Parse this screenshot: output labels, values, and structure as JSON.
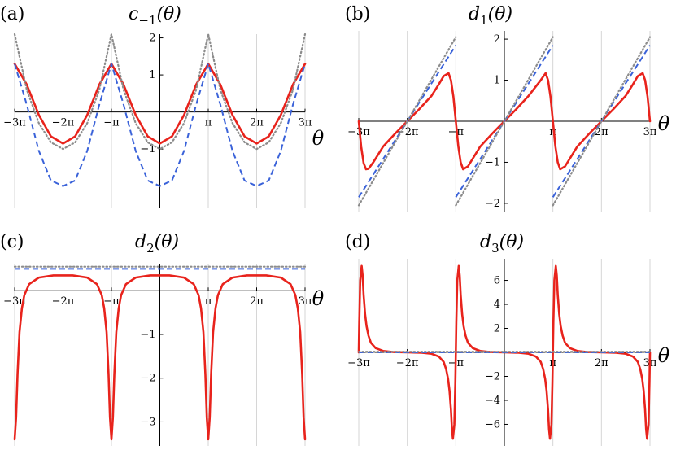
{
  "figure": {
    "axis_symbol": "θ"
  },
  "colors": {
    "main": "#e8231c",
    "dashed": "#3a62d9",
    "dotted": "#8c8c8c",
    "grid": "#d6d6d6",
    "axis": "#000000"
  },
  "chart_data": [
    {
      "type": "line",
      "panel_label": "(a)",
      "title": "c−1(θ)",
      "title_base": "c",
      "title_sub": "−1",
      "title_arg": "(θ)",
      "x_label": "θ",
      "x_range_pi": [
        -3,
        3
      ],
      "ylim": [
        -2.6,
        2.1
      ],
      "x_ticks": [
        {
          "value_pi": -3,
          "label": "−3π"
        },
        {
          "value_pi": -2,
          "label": "−2π"
        },
        {
          "value_pi": -1,
          "label": "−π"
        },
        {
          "value_pi": 1,
          "label": "π"
        },
        {
          "value_pi": 2,
          "label": "2π"
        },
        {
          "value_pi": 3,
          "label": "3π"
        }
      ],
      "y_ticks": [
        {
          "value": -1,
          "label": "−1"
        },
        {
          "value": 1,
          "label": "1"
        },
        {
          "value": 2,
          "label": "2"
        }
      ],
      "grid_x": true,
      "series": [
        {
          "style": "solid",
          "color": "#e8231c",
          "x_pi": [
            -3,
            -2.75,
            -2.5,
            -2.25,
            -2,
            -1.75,
            -1.5,
            -1.25,
            -1,
            -0.75,
            -0.5,
            -0.25,
            0,
            0.25,
            0.5,
            0.75,
            1,
            1.25,
            1.5,
            1.75,
            2,
            2.25,
            2.5,
            2.75,
            3
          ],
          "y": [
            1.3,
            0.74,
            -0.08,
            -0.66,
            -0.85,
            -0.66,
            -0.08,
            0.74,
            1.3,
            0.74,
            -0.08,
            -0.66,
            -0.85,
            -0.66,
            -0.08,
            0.74,
            1.3,
            0.74,
            -0.08,
            -0.66,
            -0.85,
            -0.66,
            -0.08,
            0.74,
            1.3
          ]
        },
        {
          "style": "dashed",
          "color": "#3a62d9",
          "x_pi": [
            -3,
            -2.75,
            -2.5,
            -2.25,
            -2,
            -1.75,
            -1.5,
            -1.25,
            -1,
            -0.75,
            -0.5,
            -0.25,
            0,
            0.25,
            0.5,
            0.75,
            1,
            1.25,
            1.5,
            1.75,
            2,
            2.25,
            2.5,
            2.75,
            3
          ],
          "y": [
            1.3,
            0.2,
            -1.05,
            -1.85,
            -2.0,
            -1.85,
            -1.05,
            0.2,
            1.3,
            0.2,
            -1.05,
            -1.85,
            -2.0,
            -1.85,
            -1.05,
            0.2,
            1.3,
            0.2,
            -1.05,
            -1.85,
            -2.0,
            -1.85,
            -1.05,
            0.2,
            1.3
          ]
        },
        {
          "style": "dotted",
          "color": "#8c8c8c",
          "x_pi": [
            -3,
            -2.75,
            -2.5,
            -2.25,
            -2,
            -1.75,
            -1.5,
            -1.25,
            -1,
            -0.75,
            -0.5,
            -0.25,
            0,
            0.25,
            0.5,
            0.75,
            1,
            1.25,
            1.5,
            1.75,
            2,
            2.25,
            2.5,
            2.75,
            3
          ],
          "y": [
            2.1,
            0.6,
            -0.3,
            -0.82,
            -1.0,
            -0.82,
            -0.3,
            0.6,
            2.1,
            0.6,
            -0.3,
            -0.82,
            -1.0,
            -0.82,
            -0.3,
            0.6,
            2.1,
            0.6,
            -0.3,
            -0.82,
            -1.0,
            -0.82,
            -0.3,
            0.6,
            2.1
          ]
        }
      ]
    },
    {
      "type": "line",
      "panel_label": "(b)",
      "title": "d1(θ)",
      "title_base": "d",
      "title_sub": "1",
      "title_arg": "(θ)",
      "x_label": "θ",
      "x_range_pi": [
        -3,
        3
      ],
      "ylim": [
        -2.2,
        2.2
      ],
      "x_ticks": [
        {
          "value_pi": -3,
          "label": "−3π"
        },
        {
          "value_pi": -2,
          "label": "−2π"
        },
        {
          "value_pi": -1,
          "label": "−π"
        },
        {
          "value_pi": 1,
          "label": "π"
        },
        {
          "value_pi": 2,
          "label": "2π"
        },
        {
          "value_pi": 3,
          "label": "3π"
        }
      ],
      "y_ticks": [
        {
          "value": -2,
          "label": "−2"
        },
        {
          "value": -1,
          "label": "−1"
        },
        {
          "value": 1,
          "label": "1"
        },
        {
          "value": 2,
          "label": "2"
        }
      ],
      "grid_x": true,
      "series": [
        {
          "style": "solid",
          "color": "#e8231c",
          "x_pi": [
            -3,
            -2.95,
            -2.9,
            -2.85,
            -2.8,
            -2.7,
            -2.5,
            -2.25,
            -2,
            -1.75,
            -1.5,
            -1.35,
            -1.25,
            -1.15,
            -1.1,
            -1.05,
            -1,
            -0.95,
            -0.9,
            -0.85,
            -0.75,
            -0.5,
            -0.25,
            0,
            0.25,
            0.5,
            0.75,
            0.85,
            0.9,
            0.95,
            1,
            1.05,
            1.1,
            1.15,
            1.25,
            1.5,
            1.75,
            2,
            2.25,
            2.5,
            2.65,
            2.75,
            2.85,
            2.9,
            2.95,
            3
          ],
          "y": [
            0,
            -0.62,
            -1.02,
            -1.17,
            -1.16,
            -1.0,
            -0.62,
            -0.3,
            0,
            0.3,
            0.62,
            0.9,
            1.1,
            1.17,
            1.0,
            0.6,
            0,
            -0.6,
            -1.0,
            -1.17,
            -1.1,
            -0.62,
            -0.3,
            0,
            0.3,
            0.62,
            1.0,
            1.17,
            1.0,
            0.6,
            0,
            -0.6,
            -1.0,
            -1.17,
            -1.1,
            -0.62,
            -0.3,
            0,
            0.3,
            0.62,
            0.9,
            1.1,
            1.17,
            1.0,
            0.6,
            0
          ]
        },
        {
          "style": "dashed",
          "color": "#3a62d9",
          "segments": [
            {
              "x_pi": [
                -3,
                -1
              ],
              "y": [
                -1.85,
                1.85
              ]
            },
            {
              "x_pi": [
                -1,
                1
              ],
              "y": [
                -1.85,
                1.85
              ]
            },
            {
              "x_pi": [
                1,
                3
              ],
              "y": [
                -1.85,
                1.85
              ]
            }
          ]
        },
        {
          "style": "dotted",
          "color": "#8c8c8c",
          "segments": [
            {
              "x_pi": [
                -3,
                -1
              ],
              "y": [
                -2.05,
                2.05
              ]
            },
            {
              "x_pi": [
                -1,
                1
              ],
              "y": [
                -2.05,
                2.05
              ]
            },
            {
              "x_pi": [
                1,
                3
              ],
              "y": [
                -2.05,
                2.05
              ]
            }
          ]
        }
      ]
    },
    {
      "type": "line",
      "panel_label": "(c)",
      "title": "d2(θ)",
      "title_base": "d",
      "title_sub": "2",
      "title_arg": "(θ)",
      "x_label": "θ",
      "x_range_pi": [
        -3,
        3
      ],
      "ylim": [
        -3.55,
        0.6
      ],
      "x_ticks": [
        {
          "value_pi": -3,
          "label": "−3π"
        },
        {
          "value_pi": -2,
          "label": "−2π"
        },
        {
          "value_pi": -1,
          "label": "−π"
        },
        {
          "value_pi": 1,
          "label": "π"
        },
        {
          "value_pi": 2,
          "label": "2π"
        },
        {
          "value_pi": 3,
          "label": "3π"
        }
      ],
      "y_ticks": [
        {
          "value": -3,
          "label": "−3"
        },
        {
          "value": -2,
          "label": "−2"
        },
        {
          "value": -1,
          "label": "−1"
        }
      ],
      "grid_x": true,
      "series": [
        {
          "style": "solid",
          "color": "#e8231c",
          "x_pi": [
            -3,
            -2.97,
            -2.94,
            -2.9,
            -2.85,
            -2.8,
            -2.7,
            -2.5,
            -2.2,
            -2,
            -1.8,
            -1.5,
            -1.3,
            -1.2,
            -1.15,
            -1.1,
            -1.06,
            -1.03,
            -1,
            -0.97,
            -0.94,
            -0.9,
            -0.85,
            -0.8,
            -0.7,
            -0.5,
            -0.2,
            0,
            0.2,
            0.5,
            0.7,
            0.8,
            0.85,
            0.9,
            0.94,
            0.97,
            1,
            1.03,
            1.06,
            1.1,
            1.15,
            1.2,
            1.3,
            1.5,
            1.8,
            2,
            2.2,
            2.5,
            2.7,
            2.8,
            2.85,
            2.9,
            2.94,
            2.97,
            3
          ],
          "y": [
            -3.4,
            -2.9,
            -1.9,
            -0.95,
            -0.4,
            -0.1,
            0.15,
            0.3,
            0.35,
            0.35,
            0.35,
            0.3,
            0.15,
            -0.1,
            -0.4,
            -0.95,
            -1.9,
            -2.9,
            -3.4,
            -2.9,
            -1.9,
            -0.95,
            -0.4,
            -0.1,
            0.15,
            0.3,
            0.35,
            0.35,
            0.35,
            0.3,
            0.15,
            -0.1,
            -0.4,
            -0.95,
            -1.9,
            -2.9,
            -3.4,
            -2.9,
            -1.9,
            -0.95,
            -0.4,
            -0.1,
            0.15,
            0.3,
            0.35,
            0.35,
            0.35,
            0.3,
            0.15,
            -0.1,
            -0.4,
            -0.95,
            -1.9,
            -2.9,
            -3.4
          ]
        },
        {
          "style": "dashed",
          "color": "#3a62d9",
          "x_pi": [
            -3,
            3
          ],
          "y": [
            0.5,
            0.5
          ]
        },
        {
          "style": "dotted",
          "color": "#8c8c8c",
          "x_pi": [
            -3,
            3
          ],
          "y": [
            0.55,
            0.55
          ]
        }
      ]
    },
    {
      "type": "line",
      "panel_label": "(d)",
      "title": "d3(θ)",
      "title_base": "d",
      "title_sub": "3",
      "title_arg": "(θ)",
      "x_label": "θ",
      "x_range_pi": [
        -3,
        3
      ],
      "ylim": [
        -7.8,
        7.8
      ],
      "x_ticks": [
        {
          "value_pi": -3,
          "label": "−3π"
        },
        {
          "value_pi": -2,
          "label": "−2π"
        },
        {
          "value_pi": -1,
          "label": "−π"
        },
        {
          "value_pi": 1,
          "label": "π"
        },
        {
          "value_pi": 2,
          "label": "2π"
        },
        {
          "value_pi": 3,
          "label": "3π"
        }
      ],
      "y_ticks": [
        {
          "value": -6,
          "label": "−6"
        },
        {
          "value": -4,
          "label": "−4"
        },
        {
          "value": -2,
          "label": "−2"
        },
        {
          "value": 2,
          "label": "2"
        },
        {
          "value": 4,
          "label": "4"
        },
        {
          "value": 6,
          "label": "6"
        }
      ],
      "grid_x": true,
      "series": [
        {
          "style": "solid",
          "color": "#e8231c",
          "x_pi": [
            -3,
            -2.99,
            -2.97,
            -2.94,
            -2.92,
            -2.9,
            -2.87,
            -2.84,
            -2.8,
            -2.75,
            -2.65,
            -2.5,
            -2.3,
            -2,
            -1.7,
            -1.5,
            -1.35,
            -1.25,
            -1.2,
            -1.16,
            -1.13,
            -1.1,
            -1.08,
            -1.06,
            -1.03,
            -1.01,
            -1,
            -0.99,
            -0.97,
            -0.94,
            -0.92,
            -0.9,
            -0.87,
            -0.84,
            -0.8,
            -0.75,
            -0.65,
            -0.5,
            -0.3,
            0,
            0.3,
            0.5,
            0.65,
            0.75,
            0.8,
            0.84,
            0.87,
            0.9,
            0.92,
            0.94,
            0.97,
            0.99,
            1,
            1.01,
            1.03,
            1.06,
            1.08,
            1.1,
            1.13,
            1.16,
            1.2,
            1.25,
            1.35,
            1.5,
            1.7,
            2,
            2.3,
            2.5,
            2.65,
            2.75,
            2.8,
            2.84,
            2.87,
            2.9,
            2.92,
            2.94,
            2.97,
            2.99,
            3
          ],
          "y": [
            0,
            2.5,
            6.0,
            7.2,
            6.4,
            4.8,
            3.2,
            2.2,
            1.4,
            0.8,
            0.35,
            0.12,
            0.03,
            0,
            -0.03,
            -0.12,
            -0.35,
            -0.8,
            -1.4,
            -2.2,
            -3.2,
            -4.8,
            -6.4,
            -7.2,
            -6.0,
            -2.5,
            0,
            2.5,
            6.0,
            7.2,
            6.4,
            4.8,
            3.2,
            2.2,
            1.4,
            0.8,
            0.35,
            0.12,
            0.03,
            0,
            -0.03,
            -0.12,
            -0.35,
            -0.8,
            -1.4,
            -2.2,
            -3.2,
            -4.8,
            -6.4,
            -7.2,
            -6.0,
            -2.5,
            0,
            2.5,
            6.0,
            7.2,
            6.4,
            4.8,
            3.2,
            2.2,
            1.4,
            0.8,
            0.35,
            0.12,
            0.03,
            0,
            -0.03,
            -0.12,
            -0.35,
            -0.8,
            -1.4,
            -2.2,
            -3.2,
            -4.8,
            -6.4,
            -7.2,
            -6.0,
            -2.5,
            0
          ]
        },
        {
          "style": "dashed",
          "color": "#3a62d9",
          "x_pi": [
            -3,
            3
          ],
          "y": [
            0,
            0
          ]
        },
        {
          "style": "dotted",
          "color": "#8c8c8c",
          "x_pi": [
            -3,
            3
          ],
          "y": [
            0.05,
            0.05
          ]
        }
      ]
    }
  ]
}
